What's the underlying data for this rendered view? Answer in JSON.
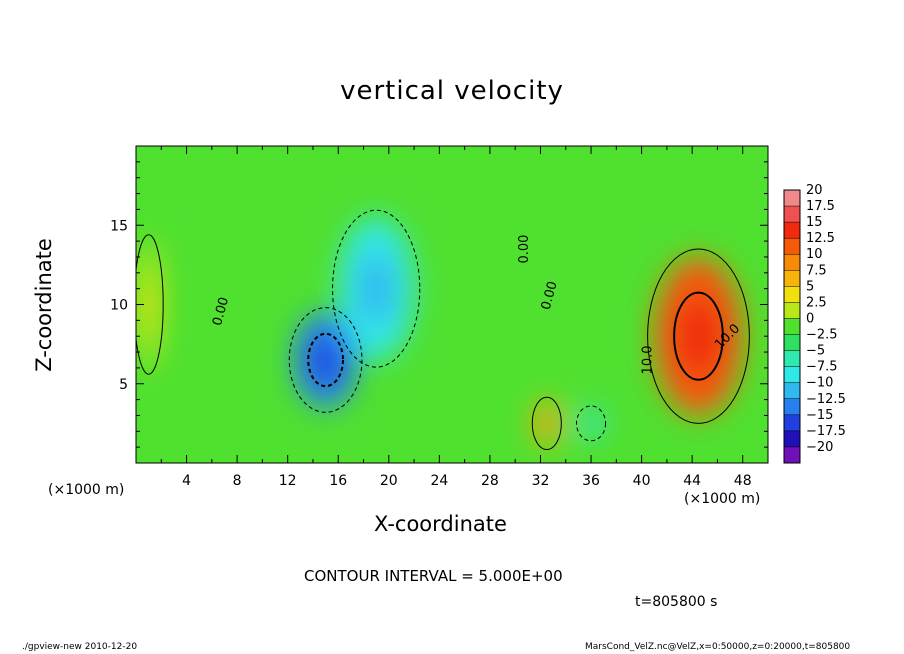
{
  "chart_data": {
    "type": "heatmap",
    "title": "vertical velocity",
    "xlabel": "X-coordinate",
    "ylabel": "Z-coordinate",
    "x_unit_label_left": "(×1000 m)",
    "x_unit_label_right": "(×1000 m)",
    "xlim": [
      0,
      50
    ],
    "ylim": [
      0,
      20
    ],
    "x_ticks": [
      4,
      8,
      12,
      16,
      20,
      24,
      28,
      32,
      36,
      40,
      44,
      48
    ],
    "y_ticks": [
      5,
      10,
      15
    ],
    "colorbar": {
      "levels": [
        20,
        17.5,
        15,
        12.5,
        10,
        7.5,
        5,
        2.5,
        0,
        -2.5,
        -5,
        -7.5,
        -10,
        -12.5,
        -15,
        -17.5,
        -20
      ],
      "level_labels": [
        "20",
        "17.5",
        "15",
        "12.5",
        "10",
        "7.5",
        "5",
        "2.5",
        "0",
        "−2.5",
        "−5",
        "−7.5",
        "−10",
        "−12.5",
        "−15",
        "−17.5",
        "−20"
      ],
      "colors": [
        "#f08a8a",
        "#f05050",
        "#f02a10",
        "#f45a0a",
        "#f88a0a",
        "#f8b40a",
        "#f0e010",
        "#b8e81a",
        "#50e030",
        "#30e060",
        "#30e8b0",
        "#30e8e8",
        "#30b8f0",
        "#2880f0",
        "#2040e0",
        "#2010b8",
        "#7010b8"
      ]
    },
    "background_value": 0,
    "features": [
      {
        "kind": "downdraft",
        "x": 15,
        "z": 6.5,
        "value": -12,
        "width": 5,
        "height": 6
      },
      {
        "kind": "downdraft",
        "x": 19,
        "z": 11,
        "value": -7,
        "width": 6,
        "height": 9
      },
      {
        "kind": "downdraft",
        "x": 36,
        "z": 2.5,
        "value": -6,
        "width": 2,
        "height": 2
      },
      {
        "kind": "updraft",
        "x": 44.5,
        "z": 8,
        "value": 12,
        "width": 7,
        "height": 10
      },
      {
        "kind": "updraft",
        "x": 32.5,
        "z": 2.5,
        "value": 8,
        "width": 2,
        "height": 3
      },
      {
        "kind": "updraft",
        "x": 1,
        "z": 10,
        "value": 3,
        "width": 2,
        "height": 8
      }
    ],
    "contour_labels": [
      {
        "text": "0.00",
        "x": 7,
        "z": 9.5,
        "rotate": -75
      },
      {
        "text": "0.00",
        "x": 31,
        "z": 13.5,
        "rotate": -90
      },
      {
        "text": "0.00",
        "x": 33,
        "z": 10.5,
        "rotate": -75
      },
      {
        "text": "10.0",
        "x": 40.8,
        "z": 6.5,
        "rotate": -90
      },
      {
        "text": "10.0",
        "x": 47,
        "z": 7.8,
        "rotate": -45
      }
    ],
    "contour_interval_text": "CONTOUR INTERVAL = 5.000E+00",
    "time_text": "t=805800 s"
  },
  "footer": {
    "left": "./gpview-new  2010-12-20",
    "right": "MarsCond_VelZ.nc@VelZ,x=0:50000,z=0:20000,t=805800"
  }
}
